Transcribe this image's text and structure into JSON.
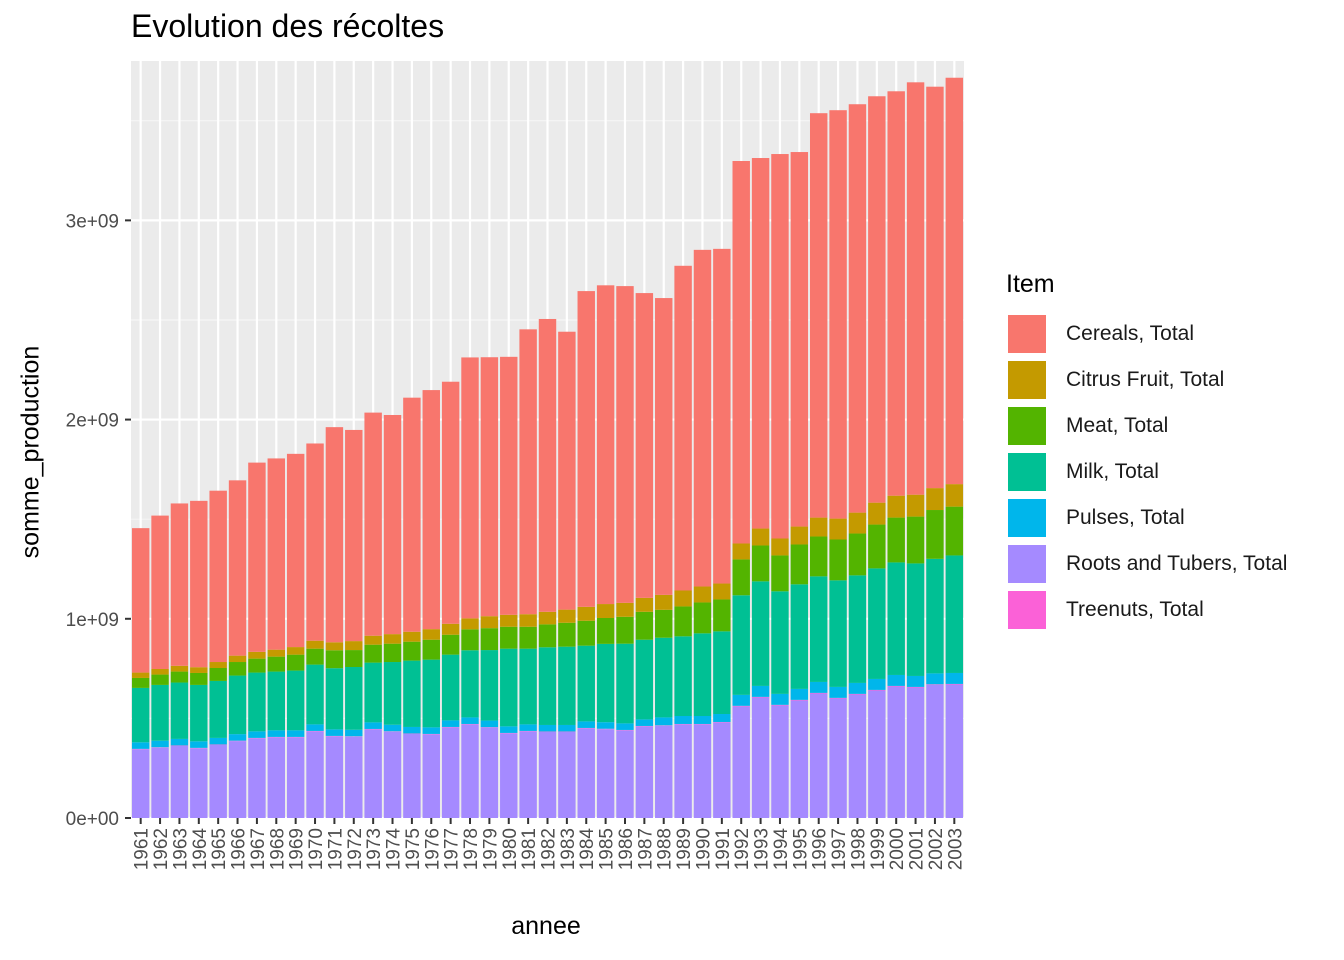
{
  "chart_data": {
    "type": "bar",
    "stacked": true,
    "title": "Evolution des récoltes",
    "xlabel": "annee",
    "ylabel": "somme_production",
    "ylim": [
      0,
      3800000000
    ],
    "yticks": [
      "0e+00",
      "1e+09",
      "2e+09",
      "3e+09"
    ],
    "ytick_values": [
      0,
      1000000000,
      2000000000,
      3000000000
    ],
    "legend_title": "Item",
    "legend_position": "right",
    "grid": true,
    "categories": [
      "1961",
      "1962",
      "1963",
      "1964",
      "1965",
      "1966",
      "1967",
      "1968",
      "1969",
      "1970",
      "1971",
      "1972",
      "1973",
      "1974",
      "1975",
      "1976",
      "1977",
      "1978",
      "1979",
      "1980",
      "1981",
      "1982",
      "1983",
      "1984",
      "1985",
      "1986",
      "1987",
      "1988",
      "1989",
      "1990",
      "1991",
      "1992",
      "1993",
      "1994",
      "1995",
      "1996",
      "1997",
      "1998",
      "1999",
      "2000",
      "2001",
      "2002",
      "2003"
    ],
    "series": [
      {
        "name": "Roots and Tubers, Total",
        "color": "#A58AFF",
        "values": [
          345000000,
          353000000,
          362000000,
          350000000,
          367000000,
          386000000,
          400000000,
          405000000,
          405000000,
          435000000,
          410000000,
          408000000,
          445000000,
          433000000,
          422000000,
          420000000,
          455000000,
          470000000,
          454000000,
          425000000,
          435000000,
          432000000,
          432000000,
          450000000,
          446000000,
          440000000,
          460000000,
          463000000,
          470000000,
          470000000,
          480000000,
          560000000,
          605000000,
          565000000,
          590000000,
          625000000,
          600000000,
          620000000,
          640000000,
          660000000,
          655000000,
          668000000,
          670000000
        ]
      },
      {
        "name": "Treenuts, Total",
        "color": "#FB61D7",
        "values": [
          2000000,
          2000000,
          2000000,
          2000000,
          2000000,
          2000000,
          2000000,
          2000000,
          2000000,
          2000000,
          2000000,
          2000000,
          2000000,
          2000000,
          2000000,
          2000000,
          2000000,
          2000000,
          2000000,
          2000000,
          2000000,
          2000000,
          2000000,
          2000000,
          2000000,
          2000000,
          2000000,
          2000000,
          2000000,
          2000000,
          2000000,
          3000000,
          3000000,
          3000000,
          3000000,
          3000000,
          3000000,
          3000000,
          3000000,
          3000000,
          3000000,
          3000000,
          3000000
        ]
      },
      {
        "name": "Pulses, Total",
        "color": "#00B6EB",
        "values": [
          33000000,
          33000000,
          33000000,
          33000000,
          33000000,
          33000000,
          33000000,
          33000000,
          33000000,
          33000000,
          33000000,
          33000000,
          33000000,
          33000000,
          33000000,
          33000000,
          33000000,
          33000000,
          33000000,
          33000000,
          33000000,
          33000000,
          33000000,
          33000000,
          33000000,
          33000000,
          33000000,
          40000000,
          40000000,
          40000000,
          40000000,
          55000000,
          55000000,
          55000000,
          55000000,
          55000000,
          55000000,
          55000000,
          55000000,
          55000000,
          55000000,
          55000000,
          55000000
        ]
      },
      {
        "name": "Milk, Total",
        "color": "#00C094",
        "values": [
          273000000,
          280000000,
          283000000,
          283000000,
          286000000,
          294000000,
          295000000,
          295000000,
          300000000,
          300000000,
          307000000,
          315000000,
          300000000,
          315000000,
          333000000,
          340000000,
          330000000,
          337000000,
          354000000,
          390000000,
          380000000,
          390000000,
          393000000,
          380000000,
          393000000,
          400000000,
          400000000,
          400000000,
          400000000,
          415000000,
          415000000,
          500000000,
          525000000,
          515000000,
          525000000,
          530000000,
          535000000,
          540000000,
          555000000,
          565000000,
          565000000,
          575000000,
          590000000
        ]
      },
      {
        "name": "Meat, Total",
        "color": "#53B400",
        "values": [
          50000000,
          52000000,
          55000000,
          60000000,
          65000000,
          68000000,
          70000000,
          75000000,
          80000000,
          80000000,
          90000000,
          85000000,
          90000000,
          92000000,
          95000000,
          100000000,
          100000000,
          105000000,
          110000000,
          110000000,
          110000000,
          115000000,
          120000000,
          125000000,
          130000000,
          135000000,
          140000000,
          140000000,
          150000000,
          155000000,
          160000000,
          180000000,
          180000000,
          180000000,
          200000000,
          200000000,
          205000000,
          210000000,
          220000000,
          225000000,
          235000000,
          245000000,
          245000000
        ]
      },
      {
        "name": "Citrus Fruit, Total",
        "color": "#C49A00",
        "values": [
          27000000,
          28000000,
          29000000,
          29000000,
          30000000,
          32000000,
          34000000,
          35000000,
          38000000,
          40000000,
          40000000,
          45000000,
          45000000,
          48000000,
          50000000,
          53000000,
          55000000,
          55000000,
          60000000,
          60000000,
          63000000,
          63000000,
          66000000,
          70000000,
          70000000,
          70000000,
          70000000,
          75000000,
          80000000,
          80000000,
          80000000,
          80000000,
          85000000,
          85000000,
          90000000,
          95000000,
          105000000,
          105000000,
          110000000,
          110000000,
          110000000,
          110000000,
          113000000
        ]
      },
      {
        "name": "Cereals, Total",
        "color": "#F8766D",
        "values": [
          725000000,
          770000000,
          815000000,
          835000000,
          860000000,
          880000000,
          950000000,
          960000000,
          970000000,
          990000000,
          1080000000,
          1060000000,
          1120000000,
          1100000000,
          1175000000,
          1200000000,
          1215000000,
          1310000000,
          1300000000,
          1295000000,
          1430000000,
          1470000000,
          1395000000,
          1585000000,
          1600000000,
          1590000000,
          1530000000,
          1490000000,
          1630000000,
          1690000000,
          1680000000,
          1920000000,
          1860000000,
          1930000000,
          1880000000,
          2030000000,
          2050000000,
          2050000000,
          2040000000,
          2030000000,
          2070000000,
          2015000000,
          2040000000
        ]
      }
    ]
  }
}
